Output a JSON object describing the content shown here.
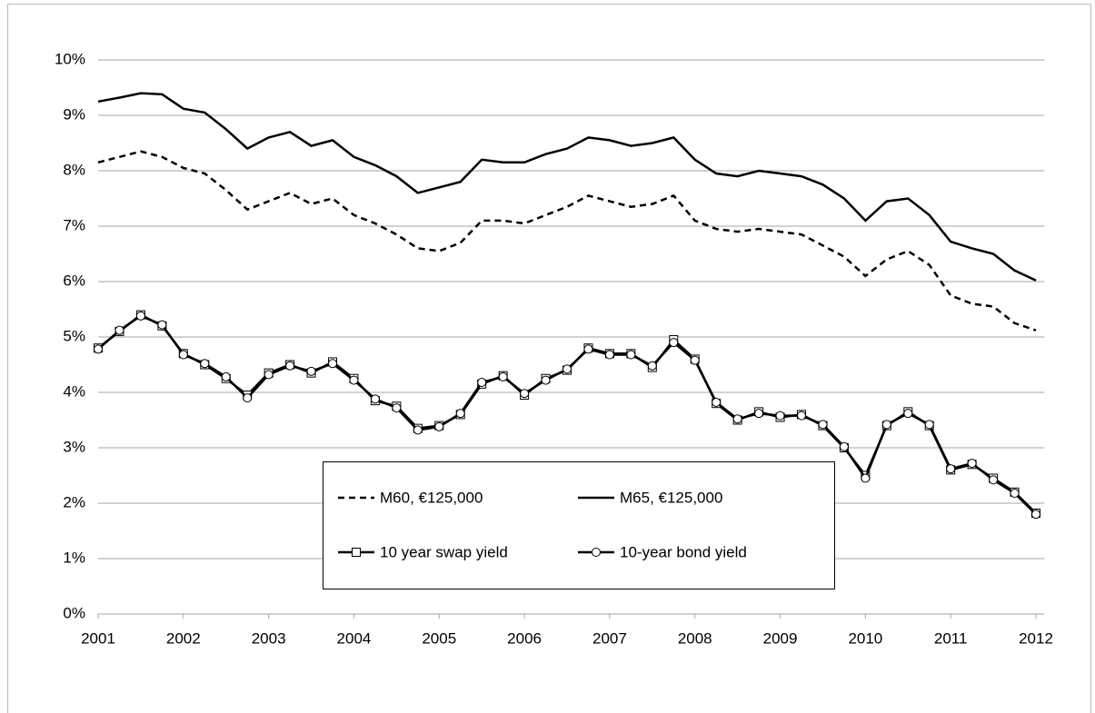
{
  "chart_data": {
    "type": "line",
    "x": [
      2001.0,
      2001.25,
      2001.5,
      2001.75,
      2002.0,
      2002.25,
      2002.5,
      2002.75,
      2003.0,
      2003.25,
      2003.5,
      2003.75,
      2004.0,
      2004.25,
      2004.5,
      2004.75,
      2005.0,
      2005.25,
      2005.5,
      2005.75,
      2006.0,
      2006.25,
      2006.5,
      2006.75,
      2007.0,
      2007.25,
      2007.5,
      2007.75,
      2008.0,
      2008.25,
      2008.5,
      2008.75,
      2009.0,
      2009.25,
      2009.5,
      2009.75,
      2010.0,
      2010.25,
      2010.5,
      2010.75,
      2011.0,
      2011.25,
      2011.5,
      2011.75,
      2012.0
    ],
    "series": [
      {
        "name": "M60, €125,000",
        "color": "#000000",
        "style": "dashed",
        "marker": "none",
        "values": [
          8.15,
          8.25,
          8.35,
          8.25,
          8.05,
          7.95,
          7.65,
          7.3,
          7.45,
          7.6,
          7.4,
          7.5,
          7.2,
          7.05,
          6.85,
          6.6,
          6.55,
          6.7,
          7.1,
          7.1,
          7.05,
          7.2,
          7.35,
          7.55,
          7.45,
          7.35,
          7.4,
          7.55,
          7.1,
          6.95,
          6.9,
          6.95,
          6.9,
          6.85,
          6.65,
          6.45,
          6.1,
          6.4,
          6.55,
          6.3,
          5.75,
          5.6,
          5.55,
          5.25,
          5.12
        ]
      },
      {
        "name": "M65, €125,000",
        "color": "#000000",
        "style": "solid",
        "marker": "none",
        "values": [
          9.25,
          9.32,
          9.4,
          9.38,
          9.12,
          9.05,
          8.75,
          8.4,
          8.6,
          8.7,
          8.45,
          8.55,
          8.25,
          8.1,
          7.9,
          7.6,
          7.7,
          7.8,
          8.2,
          8.15,
          8.15,
          8.3,
          8.4,
          8.6,
          8.55,
          8.45,
          8.5,
          8.6,
          8.2,
          7.95,
          7.9,
          8.0,
          7.95,
          7.9,
          7.75,
          7.5,
          7.1,
          7.45,
          7.5,
          7.2,
          6.72,
          6.6,
          6.5,
          6.2,
          6.02
        ]
      },
      {
        "name": "10 year swap yield",
        "color": "#000000",
        "style": "solid",
        "marker": "square",
        "values": [
          4.8,
          5.1,
          5.4,
          5.2,
          4.7,
          4.5,
          4.25,
          3.95,
          4.35,
          4.5,
          4.35,
          4.55,
          4.25,
          3.85,
          3.75,
          3.35,
          3.4,
          3.6,
          4.15,
          4.3,
          3.95,
          4.25,
          4.4,
          4.8,
          4.7,
          4.7,
          4.45,
          4.95,
          4.6,
          3.8,
          3.5,
          3.65,
          3.55,
          3.6,
          3.4,
          3.0,
          2.5,
          3.4,
          3.65,
          3.4,
          2.6,
          2.7,
          2.45,
          2.2,
          1.82
        ]
      },
      {
        "name": "10-year bond yield",
        "color": "#000000",
        "style": "solid",
        "marker": "circle",
        "values": [
          4.78,
          5.12,
          5.38,
          5.22,
          4.68,
          4.52,
          4.28,
          3.9,
          4.32,
          4.48,
          4.38,
          4.52,
          4.22,
          3.88,
          3.72,
          3.32,
          3.38,
          3.62,
          4.18,
          4.28,
          3.98,
          4.22,
          4.42,
          4.78,
          4.68,
          4.68,
          4.48,
          4.9,
          4.58,
          3.82,
          3.52,
          3.62,
          3.58,
          3.58,
          3.42,
          3.02,
          2.45,
          3.42,
          3.62,
          3.42,
          2.62,
          2.72,
          2.42,
          2.18,
          1.8
        ]
      }
    ],
    "xlim": [
      2001,
      2012.1
    ],
    "xticks": [
      2001,
      2002,
      2003,
      2004,
      2005,
      2006,
      2007,
      2008,
      2009,
      2010,
      2011,
      2012
    ],
    "ylim": [
      0,
      10
    ],
    "yticks": [
      {
        "value": 0,
        "label": "0%"
      },
      {
        "value": 1,
        "label": "1%"
      },
      {
        "value": 2,
        "label": "2%"
      },
      {
        "value": 3,
        "label": "3%"
      },
      {
        "value": 4,
        "label": "4%"
      },
      {
        "value": 5,
        "label": "5%"
      },
      {
        "value": 6,
        "label": "6%"
      },
      {
        "value": 7,
        "label": "7%"
      },
      {
        "value": 8,
        "label": "8%"
      },
      {
        "value": 9,
        "label": "9%"
      },
      {
        "value": 10,
        "label": "10%"
      }
    ],
    "grid": true,
    "legend": "bottom-center"
  }
}
